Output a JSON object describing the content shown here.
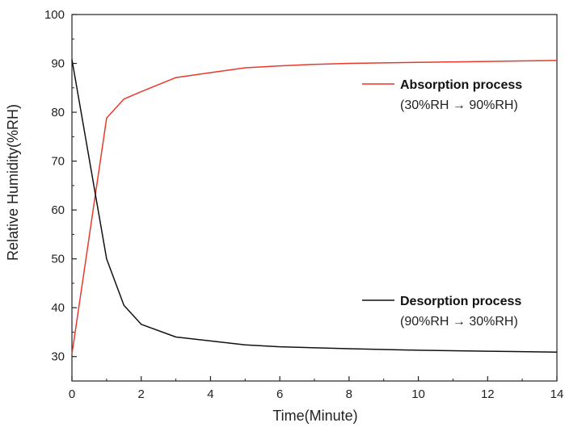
{
  "chart_data": {
    "type": "line",
    "title": "",
    "xlabel": "Time(Minute)",
    "ylabel": "Relative Humidity(%RH)",
    "xlim": [
      0,
      14
    ],
    "ylim": [
      25,
      100
    ],
    "x_ticks": [
      "0",
      "2",
      "4",
      "6",
      "8",
      "10",
      "12",
      "14"
    ],
    "y_ticks": [
      "30",
      "40",
      "50",
      "60",
      "70",
      "80",
      "90",
      "100"
    ],
    "grid": false,
    "series": [
      {
        "name": "Absorption process",
        "condition": "(30%RH → 90%RH)",
        "color": "#e8392b",
        "x": [
          0,
          1,
          1.5,
          2,
          3,
          4,
          5,
          6,
          7,
          8,
          10,
          12,
          14
        ],
        "y": [
          30.5,
          78.8,
          82.7,
          84.2,
          87.1,
          88.1,
          89.1,
          89.5,
          89.8,
          90.0,
          90.2,
          90.4,
          90.6
        ]
      },
      {
        "name": "Desorption process",
        "condition": "(90%RH → 30%RH)",
        "color": "#111111",
        "x": [
          0,
          1,
          1.5,
          2,
          3,
          4,
          5,
          6,
          8,
          10,
          12,
          14
        ],
        "y": [
          90.8,
          50.0,
          40.5,
          36.6,
          34.0,
          33.2,
          32.4,
          32.0,
          31.6,
          31.3,
          31.1,
          30.9
        ]
      }
    ]
  }
}
